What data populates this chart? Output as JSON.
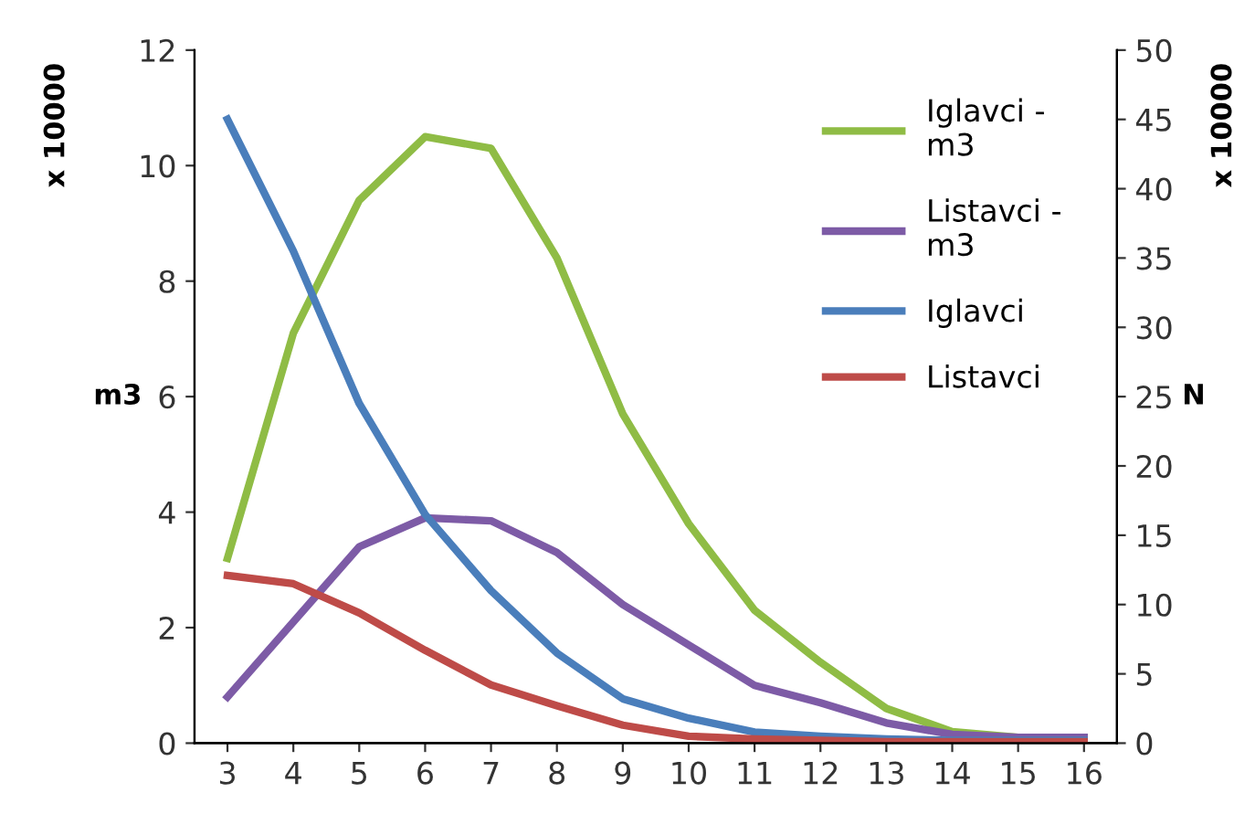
{
  "chart_data": {
    "type": "line",
    "categories": [
      "3",
      "4",
      "5",
      "6",
      "7",
      "8",
      "9",
      "10",
      "11",
      "12",
      "13",
      "14",
      "15",
      "16"
    ],
    "series": [
      {
        "name": "Iglavci -\nm3",
        "color": "#8fbc45",
        "values": [
          3.2,
          7.1,
          9.4,
          10.5,
          10.3,
          8.4,
          5.7,
          3.8,
          2.3,
          1.4,
          0.6,
          0.2,
          0.1,
          0.1
        ]
      },
      {
        "name": "Listavci -\nm3",
        "color": "#7d5ba6",
        "values": [
          0.8,
          2.1,
          3.4,
          3.9,
          3.85,
          3.3,
          2.4,
          1.7,
          1.0,
          0.7,
          0.35,
          0.15,
          0.1,
          0.1
        ]
      },
      {
        "name": "Iglavci",
        "color": "#4a7ebb",
        "axis": "y2",
        "values": [
          45,
          35.5,
          24.5,
          16.5,
          11,
          6.5,
          3.2,
          1.8,
          0.8,
          0.5,
          0.3,
          0.2,
          0.2,
          0.2
        ]
      },
      {
        "name": "Listavci",
        "color": "#be4b48",
        "axis": "y2",
        "values": [
          12.1,
          11.5,
          9.4,
          6.7,
          4.2,
          2.7,
          1.3,
          0.5,
          0.3,
          0.2,
          0.1,
          0.1,
          0.1,
          0.1
        ]
      }
    ],
    "ylabel": "m3",
    "y2label": "N",
    "annotations": [
      "x 10000",
      "x 10000"
    ],
    "ylim": [
      0,
      12
    ],
    "yticks": [
      0,
      2,
      4,
      6,
      8,
      10,
      12
    ],
    "y2lim": [
      0,
      50
    ],
    "y2ticks": [
      0,
      5,
      10,
      15,
      20,
      25,
      30,
      35,
      40,
      45,
      50
    ],
    "legend": "right",
    "grid": false,
    "marker": "none",
    "line_style": "solid"
  }
}
